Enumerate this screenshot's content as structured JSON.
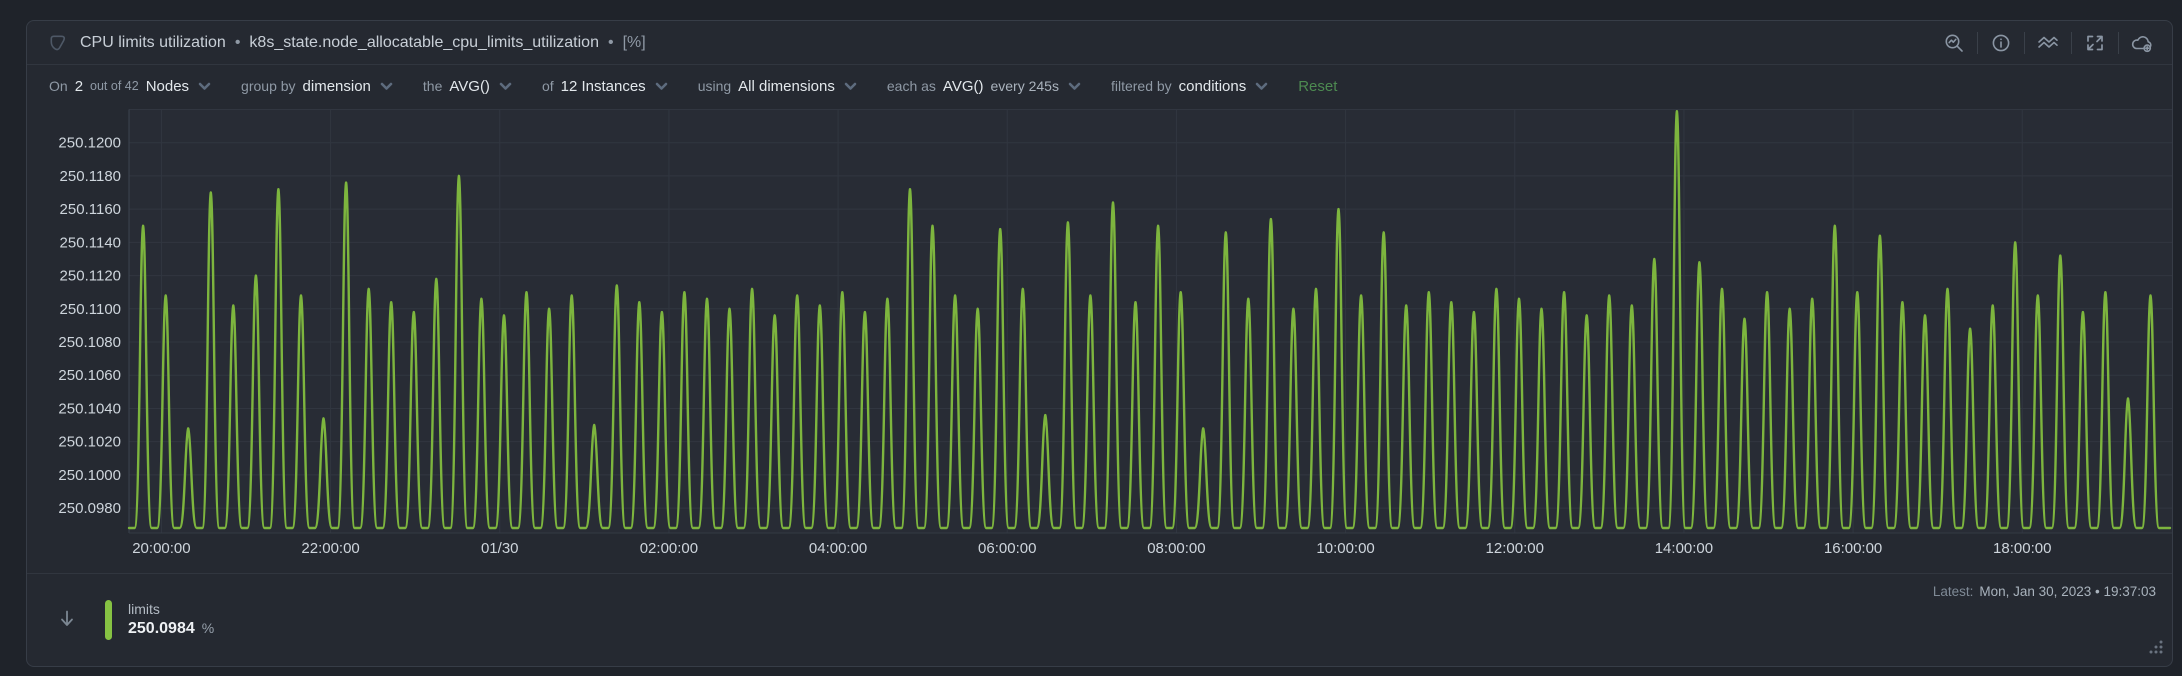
{
  "header": {
    "title": "CPU limits utilization",
    "sep": "•",
    "metric": "k8s_state.node_allocatable_cpu_limits_utilization",
    "units": "[%]",
    "icons": [
      "magnifier-chart",
      "information",
      "compare-charts",
      "fullscreen",
      "cloud-add"
    ]
  },
  "toolbar": {
    "on": "On",
    "nodes_count": "2",
    "out_of": "out of 42",
    "nodes_label": "Nodes",
    "group_by": "group by",
    "group_by_value": "dimension",
    "the": "the",
    "aggregation": "AVG()",
    "of": "of",
    "instances": "12 Instances",
    "using": "using",
    "dimensions": "All dimensions",
    "each_as": "each as",
    "each_aggregation": "AVG()",
    "every": "every 245s",
    "filtered_by": "filtered by",
    "filter_value": "conditions",
    "reset": "Reset"
  },
  "chart_data": {
    "type": "line",
    "title": "CPU limits utilization",
    "metric": "k8s_state.node_allocatable_cpu_limits_utilization",
    "unit": "%",
    "grid": true,
    "legend_position": "bottom-left",
    "x_axis": {
      "range_minutes": 1440,
      "end_label": "Mon, Jan 30, 2023 • 19:37:03",
      "ticks": [
        {
          "label": "20:00:00",
          "minute": 23
        },
        {
          "label": "22:00:00",
          "minute": 143
        },
        {
          "label": "01/30",
          "minute": 263
        },
        {
          "label": "02:00:00",
          "minute": 383
        },
        {
          "label": "04:00:00",
          "minute": 503
        },
        {
          "label": "06:00:00",
          "minute": 623
        },
        {
          "label": "08:00:00",
          "minute": 743
        },
        {
          "label": "10:00:00",
          "minute": 863
        },
        {
          "label": "12:00:00",
          "minute": 983
        },
        {
          "label": "14:00:00",
          "minute": 1103
        },
        {
          "label": "16:00:00",
          "minute": 1223
        },
        {
          "label": "18:00:00",
          "minute": 1343
        }
      ]
    },
    "y_axis": {
      "tick_labels": [
        "250.1200",
        "250.1180",
        "250.1160",
        "250.1140",
        "250.1120",
        "250.1100",
        "250.1080",
        "250.1060",
        "250.1040",
        "250.1020",
        "250.1000",
        "250.0980"
      ],
      "grid_top_value": 250.122,
      "ylim": [
        250.0965,
        250.122
      ]
    },
    "series": [
      {
        "name": "limits",
        "color": "#7db53e",
        "baseline": 250.0968,
        "latest": 250.0984,
        "peak_start_min": 10,
        "peak_interval_min": 16,
        "peak_values": [
          250.115,
          250.1108,
          250.1028,
          250.117,
          250.1102,
          250.112,
          250.1172,
          250.1108,
          250.1034,
          250.1176,
          250.1112,
          250.1104,
          250.1098,
          250.1118,
          250.118,
          250.1106,
          250.1096,
          250.111,
          250.11,
          250.1108,
          250.103,
          250.1114,
          250.1104,
          250.1098,
          250.111,
          250.1106,
          250.11,
          250.1112,
          250.1096,
          250.1108,
          250.1102,
          250.111,
          250.1098,
          250.1106,
          250.1172,
          250.115,
          250.1108,
          250.11,
          250.1148,
          250.1112,
          250.1036,
          250.1152,
          250.1108,
          250.1164,
          250.1104,
          250.115,
          250.111,
          250.1028,
          250.1146,
          250.1106,
          250.1154,
          250.11,
          250.1112,
          250.116,
          250.1108,
          250.1146,
          250.1102,
          250.111,
          250.1104,
          250.1098,
          250.1112,
          250.1106,
          250.11,
          250.111,
          250.1096,
          250.1108,
          250.1102,
          250.113,
          250.1219,
          250.1128,
          250.1112,
          250.1094,
          250.111,
          250.11,
          250.1106,
          250.115,
          250.111,
          250.1144,
          250.1104,
          250.1096,
          250.1112,
          250.1088,
          250.1102,
          250.114,
          250.1108,
          250.1132,
          250.1098,
          250.111,
          250.1046,
          250.1108
        ]
      }
    ]
  },
  "footer": {
    "latest_label": "Latest:",
    "latest_time": "Mon, Jan 30, 2023 • 19:37:03",
    "legend": {
      "name": "limits",
      "value": "250.0984",
      "unit": "%"
    }
  },
  "colors": {
    "accent_green": "#7db53e",
    "legend_green": "#86c243",
    "reset_green": "#4d8a51",
    "card_bg": "#252931",
    "plot_bg": "#282c35",
    "grid": "#313640",
    "axis": "#3c4350",
    "tick_text": "#ced5dc",
    "text_muted": "#8f99a5",
    "text_bright": "#e3e8ec"
  }
}
